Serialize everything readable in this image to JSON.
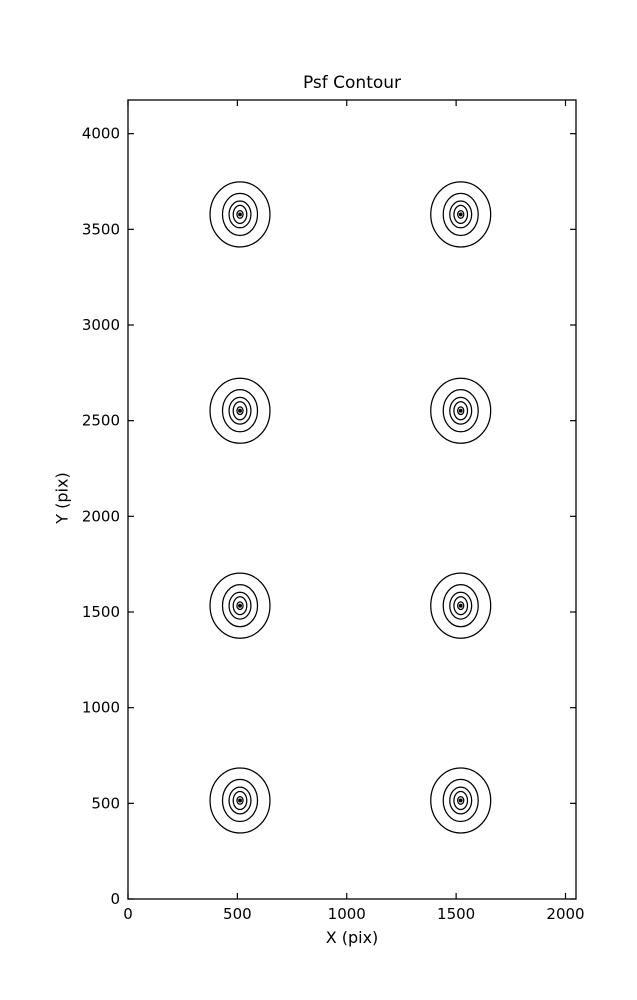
{
  "figure": {
    "background_color": "#ffffff",
    "line_color": "#000000"
  },
  "chart_data": {
    "type": "contour",
    "title": "Psf Contour",
    "xlabel": "X (pix)",
    "ylabel": "Y (pix)",
    "xlim": [
      0,
      2048
    ],
    "ylim": [
      0,
      4176
    ],
    "xticks": [
      0,
      500,
      1000,
      1500,
      2000
    ],
    "yticks": [
      0,
      500,
      1000,
      1500,
      2000,
      2500,
      3000,
      3500,
      4000
    ],
    "grid": false,
    "legend": null,
    "description": "Eight PSF contour clusters arranged in a 2-column by 4-row grid; each cluster is a set of concentric closed contour levels shrinking to a central dot.",
    "psf_centers_x": [
      512,
      1521
    ],
    "psf_centers_y": [
      515,
      1533,
      2552,
      3578
    ],
    "contour_levels_rx": [
      137,
      80,
      50,
      31,
      14,
      6
    ],
    "contour_levels_ry": [
      170,
      110,
      70,
      47,
      20,
      7
    ]
  }
}
